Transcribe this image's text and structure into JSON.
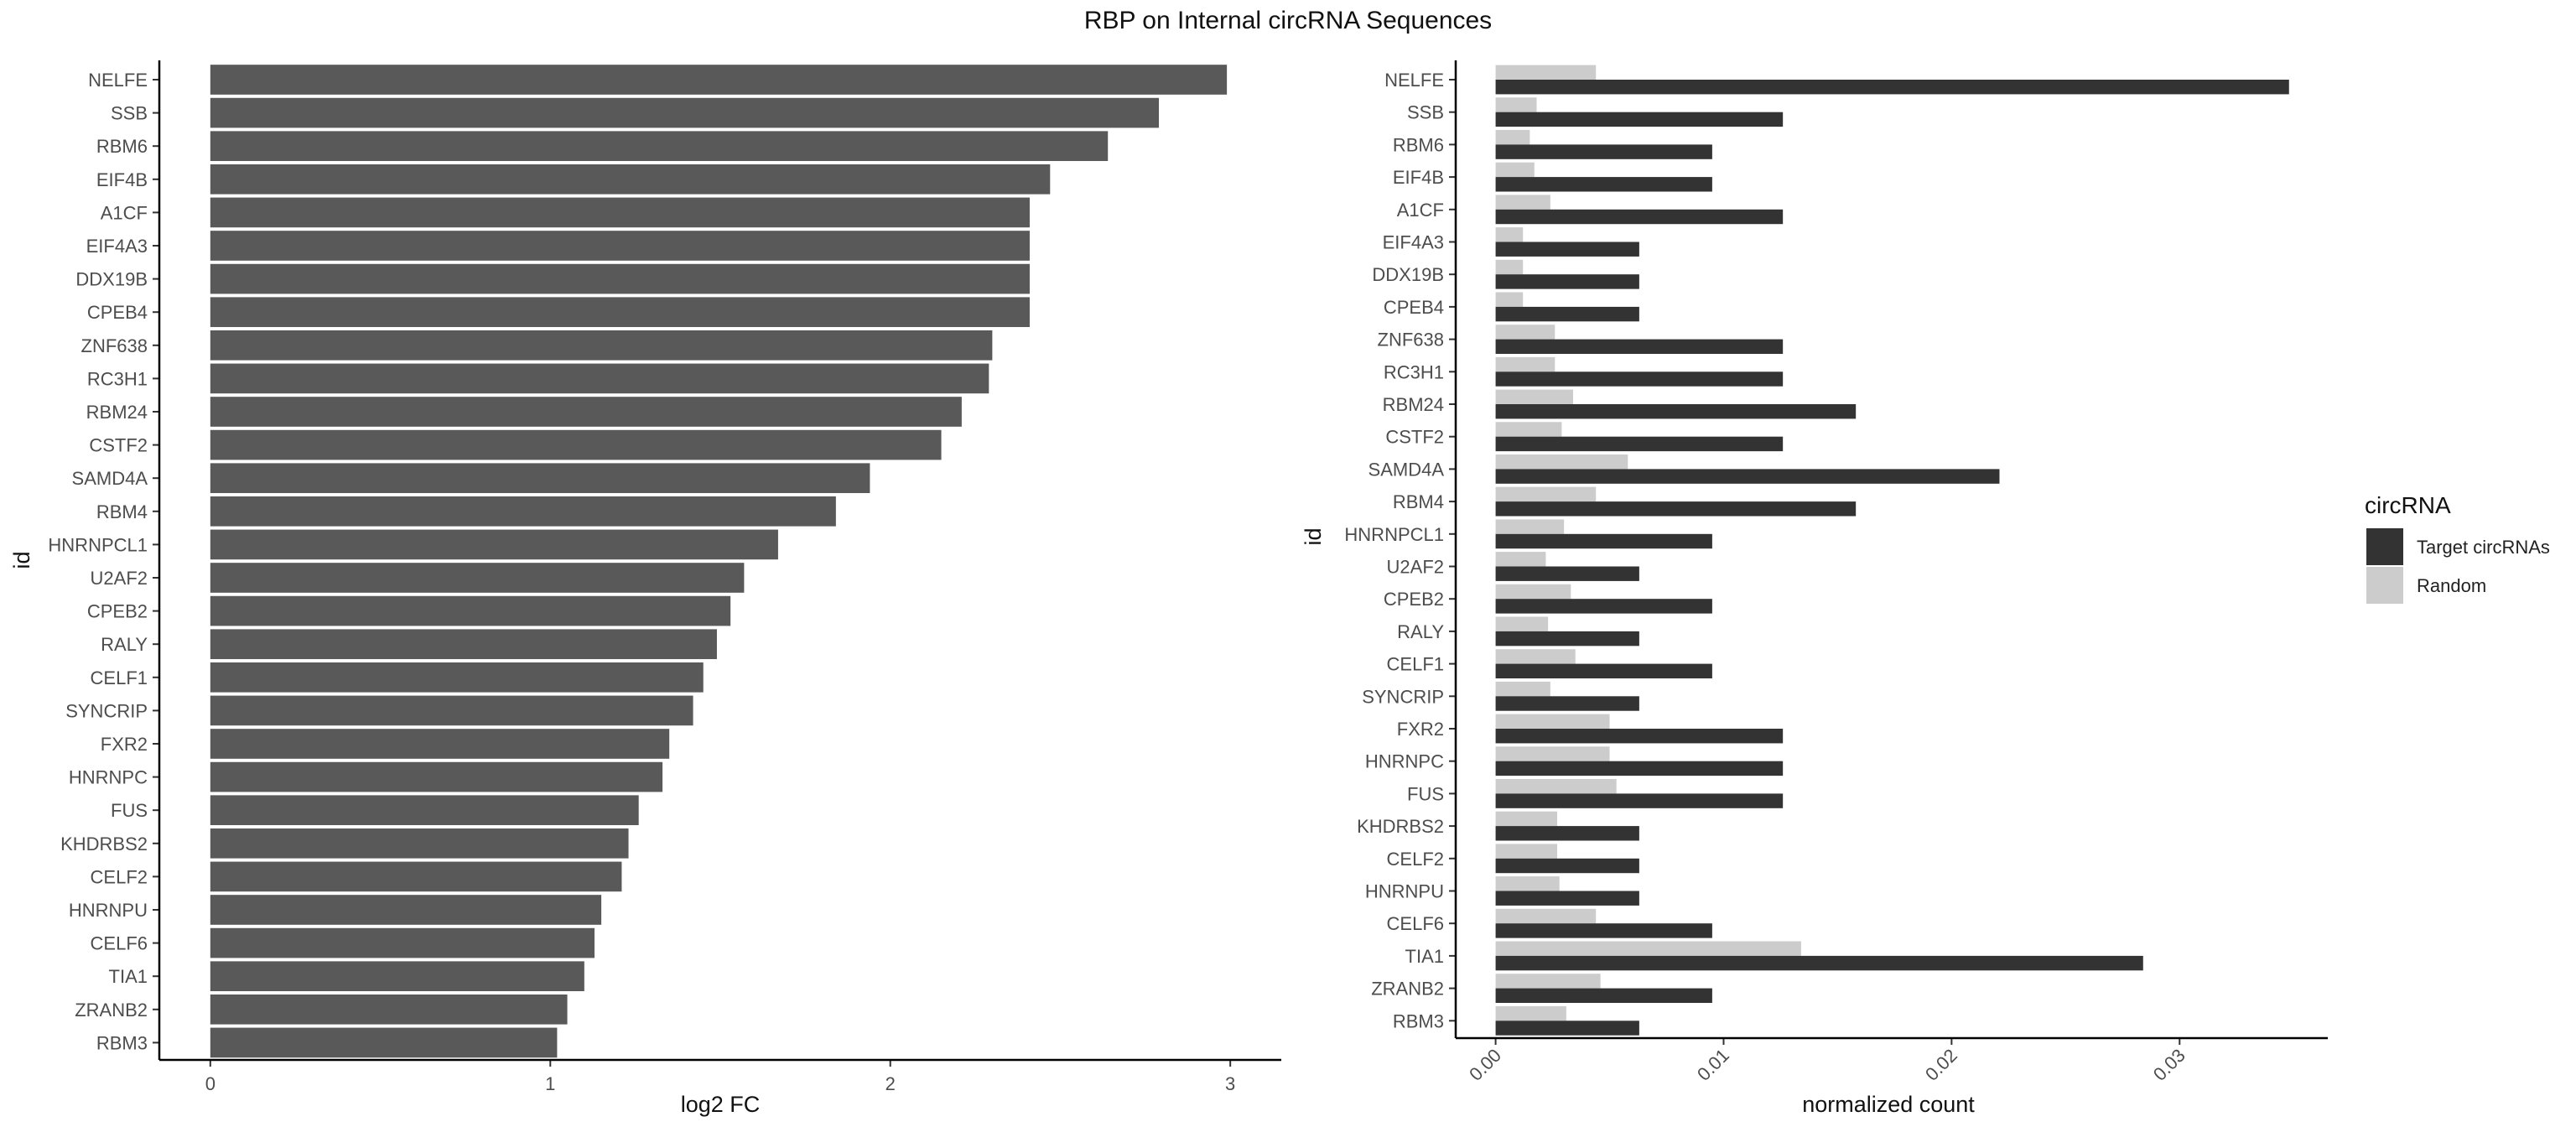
{
  "title": "RBP on Internal circRNA Sequences",
  "chart_data": [
    {
      "type": "bar",
      "orientation": "horizontal",
      "categories": [
        "NELFE",
        "SSB",
        "RBM6",
        "EIF4B",
        "A1CF",
        "EIF4A3",
        "DDX19B",
        "CPEB4",
        "ZNF638",
        "RC3H1",
        "RBM24",
        "CSTF2",
        "SAMD4A",
        "RBM4",
        "HNRNPCL1",
        "U2AF2",
        "CPEB2",
        "RALY",
        "CELF1",
        "SYNCRIP",
        "FXR2",
        "HNRNPC",
        "FUS",
        "KHDRBS2",
        "CELF2",
        "HNRNPU",
        "CELF6",
        "TIA1",
        "ZRANB2",
        "RBM3"
      ],
      "values": [
        2.99,
        2.79,
        2.64,
        2.47,
        2.41,
        2.41,
        2.41,
        2.41,
        2.3,
        2.29,
        2.21,
        2.15,
        1.94,
        1.84,
        1.67,
        1.57,
        1.53,
        1.49,
        1.45,
        1.42,
        1.35,
        1.33,
        1.26,
        1.23,
        1.21,
        1.15,
        1.13,
        1.1,
        1.05,
        1.02
      ],
      "xlabel": "log2 FC",
      "ylabel": "id",
      "xlim": [
        -0.15,
        3.15
      ],
      "xticks": [
        "0",
        "1",
        "2",
        "3"
      ],
      "color": "#595959"
    },
    {
      "type": "bar",
      "orientation": "horizontal",
      "categories": [
        "NELFE",
        "SSB",
        "RBM6",
        "EIF4B",
        "A1CF",
        "EIF4A3",
        "DDX19B",
        "CPEB4",
        "ZNF638",
        "RC3H1",
        "RBM24",
        "CSTF2",
        "SAMD4A",
        "RBM4",
        "HNRNPCL1",
        "U2AF2",
        "CPEB2",
        "RALY",
        "CELF1",
        "SYNCRIP",
        "FXR2",
        "HNRNPC",
        "FUS",
        "KHDRBS2",
        "CELF2",
        "HNRNPU",
        "CELF6",
        "TIA1",
        "ZRANB2",
        "RBM3"
      ],
      "series": [
        {
          "name": "Target circRNAs",
          "color": "#333333",
          "values": [
            0.0348,
            0.0126,
            0.0095,
            0.0095,
            0.0126,
            0.0063,
            0.0063,
            0.0063,
            0.0126,
            0.0126,
            0.0158,
            0.0126,
            0.0221,
            0.0158,
            0.0095,
            0.0063,
            0.0095,
            0.0063,
            0.0095,
            0.0063,
            0.0126,
            0.0126,
            0.0126,
            0.0063,
            0.0063,
            0.0063,
            0.0095,
            0.0284,
            0.0095,
            0.0063
          ]
        },
        {
          "name": "Random",
          "color": "#cccccc",
          "values": [
            0.0044,
            0.0018,
            0.0015,
            0.0017,
            0.0024,
            0.0012,
            0.0012,
            0.0012,
            0.0026,
            0.0026,
            0.0034,
            0.0029,
            0.0058,
            0.0044,
            0.003,
            0.0022,
            0.0033,
            0.0023,
            0.0035,
            0.0024,
            0.005,
            0.005,
            0.0053,
            0.0027,
            0.0027,
            0.0028,
            0.0044,
            0.0134,
            0.0046,
            0.0031
          ]
        }
      ],
      "xlabel": "normalized count",
      "ylabel": "id",
      "xlim": [
        -0.00175,
        0.0365
      ],
      "xticks": [
        "0.00",
        "0.01",
        "0.02",
        "0.03"
      ],
      "legend": {
        "title": "circRNA",
        "placement": "right"
      }
    }
  ]
}
